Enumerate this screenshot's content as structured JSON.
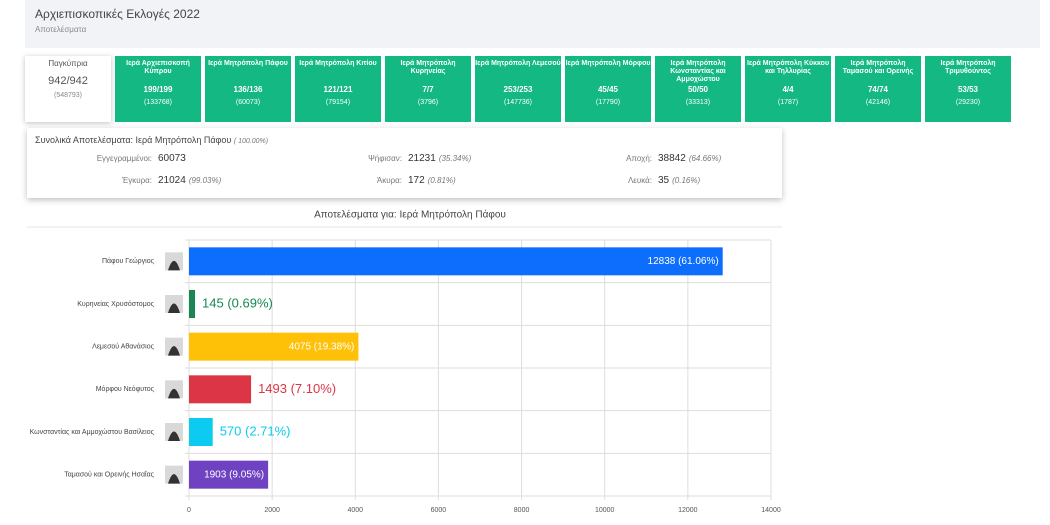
{
  "header": {
    "title": "Αρχιεπισκοπικές Εκλογές 2022",
    "subtitle": "Αποτελέσματα"
  },
  "overall": {
    "name": "Παγκύπρια",
    "count": "942/942",
    "voters": "(548793)"
  },
  "tiles": [
    {
      "name": "Ιερά Αρχιεπισκοπή Κύπρου",
      "count": "199/199",
      "voters": "(133768)"
    },
    {
      "name": "Ιερά Μητρόπολη Πάφου",
      "count": "136/136",
      "voters": "(60073)"
    },
    {
      "name": "Ιερά Μητρόπολη Κιτίου",
      "count": "121/121",
      "voters": "(79154)"
    },
    {
      "name": "Ιερά Μητρόπολη Κυρηνείας",
      "count": "7/7",
      "voters": "(3796)"
    },
    {
      "name": "Ιερά Μητρόπολη Λεμεσού",
      "count": "253/253",
      "voters": "(147736)"
    },
    {
      "name": "Ιερά Μητρόπολη Μόρφου",
      "count": "45/45",
      "voters": "(17790)"
    },
    {
      "name": "Ιερά Μητρόπολη Κωνσταντίας και Αμμοχώστου",
      "count": "50/50",
      "voters": "(33313)"
    },
    {
      "name": "Ιερά Μητρόπολη Κύκκου και Τηλλυρίας",
      "count": "4/4",
      "voters": "(1787)"
    },
    {
      "name": "Ιερά Μητρόπολη Ταμασού και Ορεινής",
      "count": "74/74",
      "voters": "(42146)"
    },
    {
      "name": "Ιερά Μητρόπολη Τριμυθούντος",
      "count": "53/53",
      "voters": "(29230)"
    }
  ],
  "summary": {
    "title": "Συνολικά Αποτελέσματα: Ιερά Μητρόπολη Πάφου",
    "percent": "( 100.00%)",
    "stats": [
      {
        "label": "Εγγεγραμμένοι:",
        "value": 60073
      },
      {
        "label": "Ψήφισαν:",
        "value": 21231,
        "pct": "(35.34%)"
      },
      {
        "label": "Αποχή:",
        "value": 38842,
        "pct": "(64.66%)"
      },
      {
        "label": "Έγκυρα:",
        "value": 21024,
        "pct": "(99.03%)"
      },
      {
        "label": "Άκυρα:",
        "value": 172,
        "pct": "(0.81%)"
      },
      {
        "label": "Λευκά:",
        "value": 35,
        "pct": "(0.16%)"
      }
    ]
  },
  "chart_data": {
    "type": "hbar",
    "title": "Αποτελέσματα για: Ιερά Μητρόπολη Πάφου",
    "categories": [
      "Πάφου Γεώργιος",
      "Κυρηνείας Χρυσόστομος",
      "Λεμεσού Αθανάσιος",
      "Μόρφου Νεόφυτος",
      "Κωνσταντίας και Αμμοχώστου Βασίλειος",
      "Ταμασού και Ορεινής Ησαΐας"
    ],
    "values": [
      12838,
      145,
      4075,
      1493,
      570,
      1903
    ],
    "value_labels": [
      "12838 (61.06%)",
      "145 (0.69%)",
      "4075 (19.38%)",
      "1493 (7.10%)",
      "570 (2.71%)",
      "1903 (9.05%)"
    ],
    "colors": [
      "#0d6efd",
      "#198754",
      "#ffc107",
      "#dc3545",
      "#0dcaf0",
      "#6f42c1"
    ],
    "xlim": [
      0,
      14000
    ],
    "xticks": [
      0,
      2000,
      4000,
      6000,
      8000,
      10000,
      12000,
      14000
    ],
    "grid": true
  }
}
